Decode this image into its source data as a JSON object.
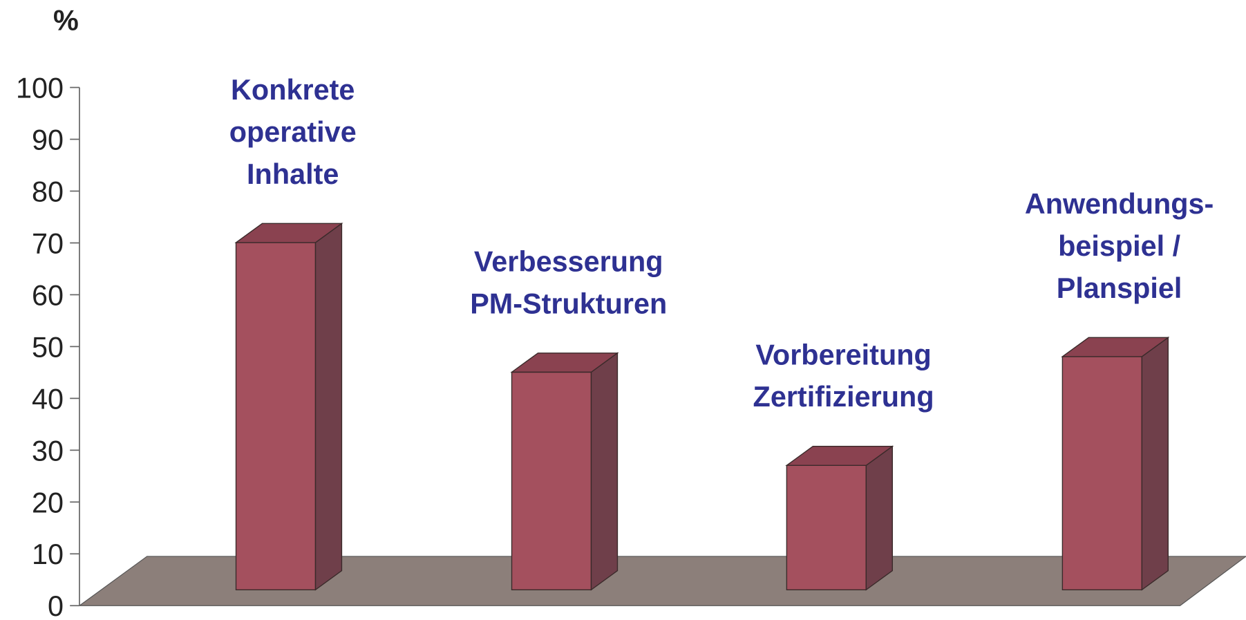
{
  "chart_data": {
    "type": "bar3d",
    "y_label": "%",
    "categories": [
      [
        "Konkrete",
        "operative",
        "Inhalte"
      ],
      [
        "Verbesserung",
        "PM-Strukturen"
      ],
      [
        "Vorbereitung",
        "Zertifizierung"
      ],
      [
        "Anwendungs-",
        "beispiel /",
        "Planspiel"
      ]
    ],
    "values": [
      67,
      42,
      24,
      45
    ],
    "color": "#a4505e",
    "ylim": [
      0,
      100
    ],
    "yticks": [
      0,
      10,
      20,
      30,
      40,
      50,
      60,
      70,
      80,
      90,
      100
    ]
  }
}
